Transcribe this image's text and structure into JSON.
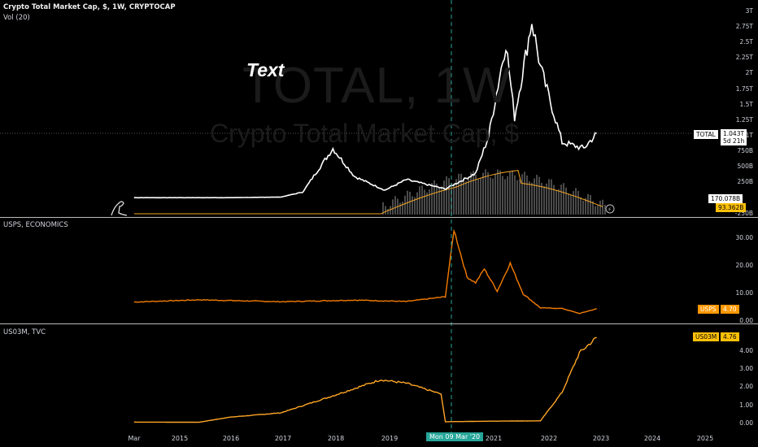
{
  "panes": {
    "main": {
      "symbol_legend": "Crypto Total Market Cap, $, 1W, CRYPTOCAP",
      "vol_legend": "Vol (20)",
      "watermark_symbol": "TOTAL, 1W",
      "watermark_name": "Crypto Total Market Cap, $",
      "text_annotation": "Text",
      "y_ticks": [
        "3T",
        "2.75T",
        "2.5T",
        "2.25T",
        "2T",
        "1.75T",
        "1.5T",
        "1.25T",
        "1T",
        "750B",
        "500B",
        "250B"
      ],
      "bottom_tick": "-250B",
      "last_tag": {
        "label": "TOTAL",
        "value": "1.043T",
        "countdown": "5d 21h"
      },
      "vol_tag": "170.078B",
      "vol_ma_tag": "93.362B"
    },
    "usps": {
      "legend": "USPS, ECONOMICS",
      "y_ticks": [
        "30.00",
        "20.00",
        "10.00",
        "0.00"
      ],
      "tag_label": "USPS",
      "tag_value": "4.70"
    },
    "us03m": {
      "legend": "US03M, TVC",
      "y_ticks": [
        "4.00",
        "3.00",
        "2.00",
        "1.00",
        "0.00"
      ],
      "tag_label": "US03M",
      "tag_value": "4.76"
    }
  },
  "x_axis": {
    "labels": [
      "Mar",
      "2015",
      "2016",
      "2017",
      "2018",
      "2019",
      "2021",
      "2022",
      "2023",
      "2024",
      "2025"
    ],
    "crosshair_label": "Mon 09 Mar '20"
  },
  "colors": {
    "total_line": "#ffffff",
    "usps_line": "#f57c00",
    "us03m_line": "#ffa726",
    "vol_ma": "#f5a623",
    "crosshair": "#26a69a",
    "tag_yellow": "#ffc107",
    "tag_orange": "#ff9800"
  },
  "chart_data": [
    {
      "type": "line",
      "title": "Crypto Total Market Cap, $, 1W, CRYPTOCAP",
      "x": [
        "2014-03",
        "2015-01",
        "2016-01",
        "2017-01",
        "2017-06",
        "2018-01",
        "2018-06",
        "2019-01",
        "2019-06",
        "2020-03",
        "2020-10",
        "2021-01",
        "2021-05",
        "2021-07",
        "2021-11",
        "2022-01",
        "2022-06",
        "2022-11",
        "2023-02"
      ],
      "series": [
        {
          "name": "TOTAL",
          "values": [
            0.01,
            0.01,
            0.01,
            0.02,
            0.1,
            0.8,
            0.35,
            0.13,
            0.3,
            0.15,
            0.4,
            1.0,
            2.5,
            1.3,
            2.85,
            2.1,
            0.9,
            0.8,
            1.04
          ]
        }
      ],
      "ylabel": "USD",
      "ylim": [
        -0.25,
        3.0
      ]
    },
    {
      "type": "line",
      "title": "USPS, ECONOMICS",
      "x": [
        "2014-03",
        "2015-06",
        "2017-01",
        "2018-06",
        "2019-06",
        "2020-03",
        "2020-05",
        "2020-08",
        "2020-10",
        "2020-12",
        "2021-03",
        "2021-06",
        "2021-09",
        "2022-01",
        "2022-06",
        "2022-10",
        "2023-02"
      ],
      "series": [
        {
          "name": "USPS",
          "values": [
            7.1,
            7.9,
            7.2,
            7.8,
            7.3,
            9,
            33,
            16,
            14,
            19,
            11,
            21,
            10,
            5,
            4.8,
            3,
            4.7
          ]
        }
      ],
      "ylim": [
        0,
        35
      ]
    },
    {
      "type": "line",
      "title": "US03M, TVC",
      "x": [
        "2014-03",
        "2015-06",
        "2016-01",
        "2017-01",
        "2018-01",
        "2018-12",
        "2019-06",
        "2020-02",
        "2020-03",
        "2021-01",
        "2022-01",
        "2022-06",
        "2022-10",
        "2023-02"
      ],
      "series": [
        {
          "name": "US03M",
          "values": [
            0.03,
            0.02,
            0.3,
            0.55,
            1.5,
            2.4,
            2.2,
            1.6,
            0.05,
            0.08,
            0.1,
            1.7,
            3.9,
            4.76
          ]
        }
      ],
      "ylim": [
        0,
        5
      ]
    }
  ]
}
